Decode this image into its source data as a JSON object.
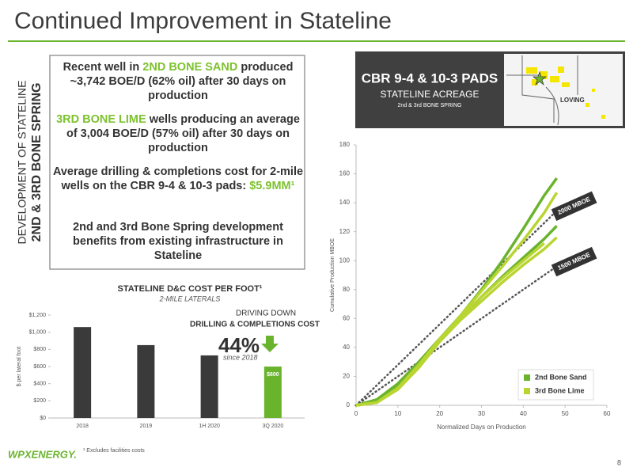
{
  "title": "Continued Improvement in Stateline",
  "side_label": {
    "line1": "DEVELOPMENT OF STATELINE",
    "line2": "2ND & 3RD BONE SPRING"
  },
  "highlights": [
    [
      "Recent well in ",
      "2ND BONE SAND",
      " produced ~3,742 BOE/D (62% oil) after 30 days on production"
    ],
    [
      "",
      "3RD BONE LIME",
      " wells producing an average of 3,004 BOE/D (57% oil) after 30 days on production"
    ],
    [
      "Average drilling & completions cost for 2-mile wells on the CBR 9-4 & 10-3 pads: ",
      "$5.9MM¹"
    ],
    [
      "2nd and 3rd Bone Spring development benefits from existing infrastructure in Stateline"
    ]
  ],
  "pads_box": {
    "title": "CBR 9-4 & 10-3 PADS",
    "subtitle": "STATELINE ACREAGE",
    "note": "2nd & 3rd BONE SPRING",
    "map_label": "LOVING"
  },
  "footnote": "¹ Excludes facilities costs",
  "page_number": "8",
  "logo": "WPXENERGY.",
  "chart_data": [
    {
      "type": "bar",
      "title": "STATELINE D&C COST PER FOOT¹",
      "subtitle": "2-MILE LATERALS",
      "y_label": "$ per lateral foot",
      "categories": [
        "2018",
        "2019",
        "1H 2020",
        "3Q 2020"
      ],
      "values": [
        1060,
        850,
        730,
        600
      ],
      "value_labels": [
        null,
        null,
        null,
        "$600"
      ],
      "colors": [
        "#3a3a3a",
        "#3a3a3a",
        "#3a3a3a",
        "#6ab42d"
      ],
      "ylim": [
        0,
        1200
      ],
      "yticks": [
        {
          "value": 0,
          "label": "$0"
        },
        {
          "value": 200,
          "label": "$200"
        },
        {
          "value": 400,
          "label": "$400"
        },
        {
          "value": 600,
          "label": "$600"
        },
        {
          "value": 800,
          "label": "$800"
        },
        {
          "value": 1000,
          "label": "$1,000"
        },
        {
          "value": 1200,
          "label": "$1,200"
        }
      ],
      "annotations": [
        "DRIVING DOWN",
        "DRILLING & COMPLETIONS COST",
        "44%",
        "since 2018"
      ]
    },
    {
      "type": "line",
      "x_label": "Normalized Days on Production",
      "y_label": "Cumulative Production MBOE",
      "x": [
        0,
        5,
        10,
        15,
        20,
        25,
        30,
        35,
        40,
        45,
        48
      ],
      "series": [
        {
          "name": "2nd Bone Sand",
          "color": "#6ab42d",
          "lines": [
            [
              0,
              4,
              15,
              30,
              46,
              62,
              80,
              100,
              122,
              145,
              157
            ],
            [
              0,
              3,
              14,
              29,
              45,
              60,
              75,
              89,
              102,
              115,
              124
            ]
          ]
        },
        {
          "name": "3rd Bone Lime",
          "color": "#b9d531",
          "lines": [
            [
              0,
              2,
              12,
              27,
              45,
              62,
              79,
              96,
              114,
              133,
              147
            ],
            [
              0,
              2,
              11,
              26,
              44,
              59,
              72,
              85,
              97,
              108,
              116
            ],
            [
              0,
              2,
              12,
              28,
              46,
              61,
              75,
              88,
              100,
              112,
              null
            ]
          ]
        }
      ],
      "reference_lines": [
        {
          "name": "2000 MBOE",
          "values": [
            0,
            14,
            28,
            42,
            56,
            70,
            84,
            98,
            112,
            126,
            134.4
          ]
        },
        {
          "name": "1500 MBOE",
          "values": [
            0,
            10,
            20,
            30,
            40,
            50,
            60,
            70,
            80,
            90,
            96
          ]
        }
      ],
      "xlim": [
        0,
        60
      ],
      "xticks": [
        0,
        10,
        20,
        30,
        40,
        50,
        60
      ],
      "ylim": [
        0,
        180
      ],
      "yticks": [
        0,
        20,
        40,
        60,
        80,
        100,
        120,
        140,
        160,
        180
      ]
    }
  ]
}
